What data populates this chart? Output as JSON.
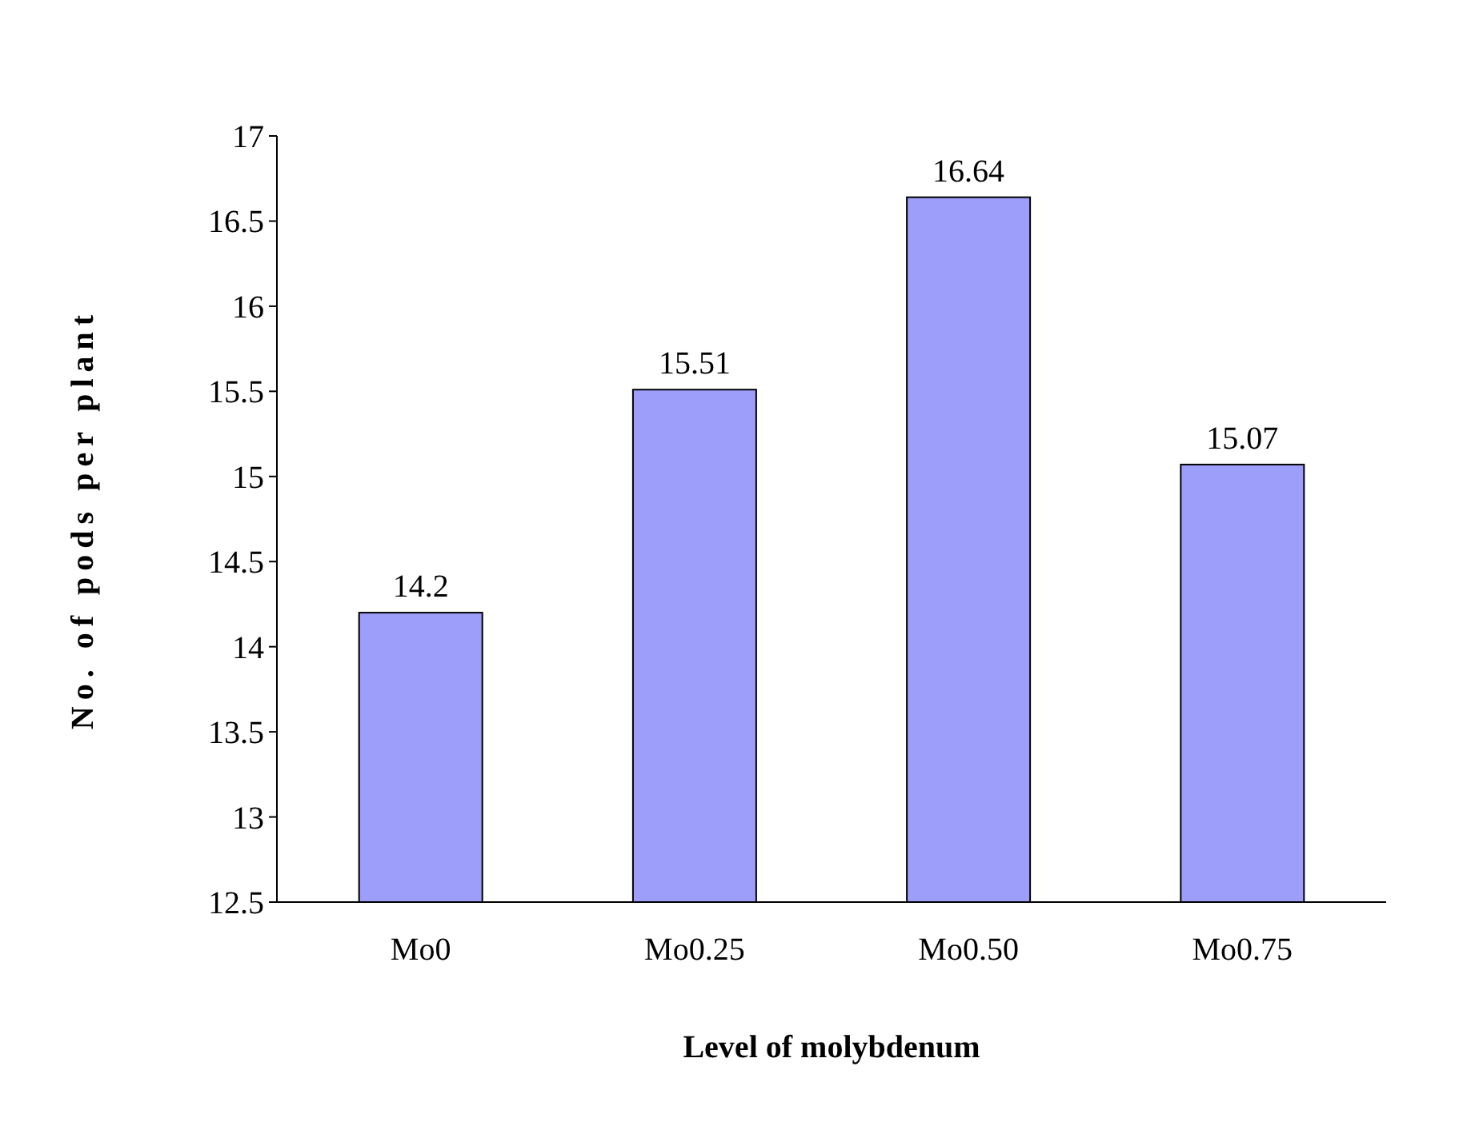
{
  "chart_data": {
    "type": "bar",
    "xlabel": "Level of molybdenum",
    "ylabel": "No. of pods per plant",
    "categories": [
      "Mo0",
      "Mo0.25",
      "Mo0.50",
      "Mo0.75"
    ],
    "values": [
      14.2,
      15.51,
      16.64,
      15.07
    ],
    "color": "#9d9dfa",
    "ylim": [
      12.5,
      17
    ],
    "yticks": [
      12.5,
      13,
      13.5,
      14,
      14.5,
      15,
      15.5,
      16,
      16.5,
      17
    ],
    "data_labels": true,
    "grid": false
  }
}
